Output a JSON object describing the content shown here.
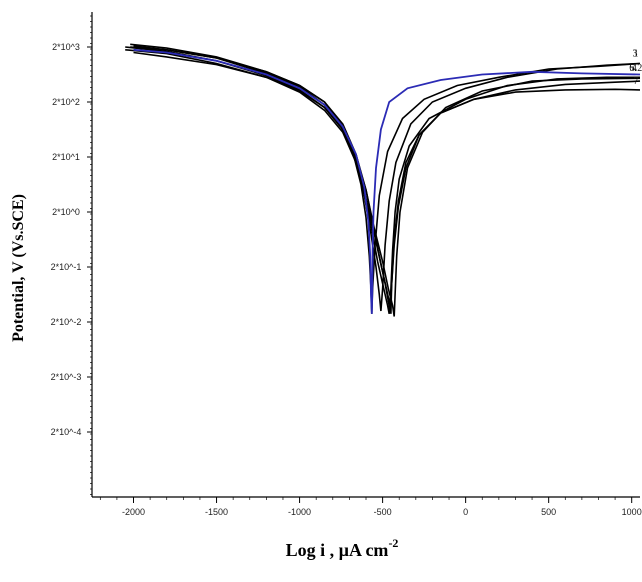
{
  "chart_data": {
    "type": "line",
    "title": "",
    "xlabel": "Log i , µA cm",
    "xlabel_sup": "-2",
    "ylabel": "Potential, V (Vs.SCE)",
    "xlim": [
      -2250,
      1050
    ],
    "x_ticks": [
      -2000,
      -1500,
      -1000,
      -500,
      0,
      500,
      1000
    ],
    "y_tick_labels": [
      "2*10^3",
      "2*10^2",
      "2*10^1",
      "2*10^0",
      "2*10^-1",
      "2*10^-2",
      "2*10^-3",
      "2*10^-4"
    ],
    "y_axis_note": "curve heights read in y-tick-label index units: 0 = 2*10^3 row, 7 = 2*10^-4 row",
    "grid": false,
    "legend": "curve labels at right end",
    "series": [
      {
        "name": "3",
        "color": "#000000",
        "points": [
          [
            -2020,
            -0.05
          ],
          [
            -1800,
            0.02
          ],
          [
            -1500,
            0.18
          ],
          [
            -1200,
            0.45
          ],
          [
            -1000,
            0.7
          ],
          [
            -850,
            1.0
          ],
          [
            -750,
            1.4
          ],
          [
            -680,
            1.9
          ],
          [
            -630,
            2.5
          ],
          [
            -600,
            3.1
          ],
          [
            -580,
            3.8
          ],
          [
            -570,
            4.4
          ],
          [
            -565,
            4.85
          ],
          [
            -560,
            4.4
          ],
          [
            -545,
            3.6
          ],
          [
            -520,
            2.7
          ],
          [
            -470,
            1.9
          ],
          [
            -380,
            1.3
          ],
          [
            -250,
            0.95
          ],
          [
            -50,
            0.7
          ],
          [
            200,
            0.55
          ],
          [
            500,
            0.4
          ],
          [
            800,
            0.35
          ],
          [
            1050,
            0.3
          ]
        ]
      },
      {
        "name": "1",
        "color": "#000000",
        "points": [
          [
            -2000,
            -0.02
          ],
          [
            -1800,
            0.05
          ],
          [
            -1500,
            0.2
          ],
          [
            -1200,
            0.48
          ],
          [
            -1000,
            0.72
          ],
          [
            -850,
            1.05
          ],
          [
            -750,
            1.45
          ],
          [
            -670,
            2.0
          ],
          [
            -610,
            2.7
          ],
          [
            -570,
            3.4
          ],
          [
            -540,
            4.0
          ],
          [
            -520,
            4.5
          ],
          [
            -510,
            4.8
          ],
          [
            -500,
            4.4
          ],
          [
            -485,
            3.6
          ],
          [
            -460,
            2.8
          ],
          [
            -420,
            2.1
          ],
          [
            -330,
            1.4
          ],
          [
            -200,
            1.0
          ],
          [
            0,
            0.75
          ],
          [
            250,
            0.55
          ],
          [
            550,
            0.4
          ],
          [
            850,
            0.33
          ],
          [
            1050,
            0.3
          ]
        ]
      },
      {
        "name": "6",
        "color": "#000000",
        "points": [
          [
            -2050,
            0.05
          ],
          [
            -1800,
            0.12
          ],
          [
            -1500,
            0.3
          ],
          [
            -1200,
            0.55
          ],
          [
            -1000,
            0.82
          ],
          [
            -850,
            1.15
          ],
          [
            -740,
            1.55
          ],
          [
            -660,
            2.1
          ],
          [
            -600,
            2.8
          ],
          [
            -560,
            3.4
          ],
          [
            -530,
            3.9
          ],
          [
            -500,
            4.3
          ],
          [
            -470,
            4.7
          ],
          [
            -460,
            4.85
          ],
          [
            -450,
            4.4
          ],
          [
            -440,
            3.7
          ],
          [
            -425,
            3.0
          ],
          [
            -400,
            2.4
          ],
          [
            -340,
            1.8
          ],
          [
            -220,
            1.3
          ],
          [
            0,
            0.95
          ],
          [
            250,
            0.7
          ],
          [
            550,
            0.58
          ],
          [
            850,
            0.55
          ],
          [
            1050,
            0.55
          ]
        ]
      },
      {
        "name": "5.2",
        "color": "#000000",
        "points": [
          [
            -2050,
            0.0
          ],
          [
            -1800,
            0.08
          ],
          [
            -1500,
            0.25
          ],
          [
            -1200,
            0.52
          ],
          [
            -1000,
            0.78
          ],
          [
            -850,
            1.1
          ],
          [
            -740,
            1.5
          ],
          [
            -660,
            2.05
          ],
          [
            -600,
            2.75
          ],
          [
            -550,
            3.4
          ],
          [
            -510,
            3.95
          ],
          [
            -480,
            4.35
          ],
          [
            -455,
            4.7
          ],
          [
            -450,
            4.85
          ],
          [
            -445,
            4.3
          ],
          [
            -430,
            3.5
          ],
          [
            -405,
            2.8
          ],
          [
            -360,
            2.1
          ],
          [
            -280,
            1.6
          ],
          [
            -150,
            1.2
          ],
          [
            50,
            0.95
          ],
          [
            300,
            0.78
          ],
          [
            600,
            0.68
          ],
          [
            900,
            0.64
          ],
          [
            1050,
            0.62
          ]
        ]
      },
      {
        "name": "4",
        "color": "#000000",
        "points": [
          [
            -2020,
            0.0
          ],
          [
            -1800,
            0.05
          ],
          [
            -1500,
            0.2
          ],
          [
            -1200,
            0.45
          ],
          [
            -1000,
            0.7
          ],
          [
            -850,
            1.0
          ],
          [
            -740,
            1.4
          ],
          [
            -660,
            1.95
          ],
          [
            -600,
            2.6
          ],
          [
            -550,
            3.3
          ],
          [
            -500,
            3.9
          ],
          [
            -465,
            4.4
          ],
          [
            -440,
            4.7
          ],
          [
            -430,
            4.9
          ],
          [
            -425,
            4.5
          ],
          [
            -415,
            3.8
          ],
          [
            -395,
            3.0
          ],
          [
            -350,
            2.2
          ],
          [
            -260,
            1.55
          ],
          [
            -120,
            1.1
          ],
          [
            100,
            0.8
          ],
          [
            400,
            0.62
          ],
          [
            700,
            0.58
          ],
          [
            1050,
            0.57
          ]
        ]
      },
      {
        "name": "7",
        "color": "#000000",
        "points": [
          [
            -2000,
            0.1
          ],
          [
            -1800,
            0.18
          ],
          [
            -1500,
            0.32
          ],
          [
            -1200,
            0.55
          ],
          [
            -1000,
            0.8
          ],
          [
            -850,
            1.1
          ],
          [
            -740,
            1.5
          ],
          [
            -660,
            2.0
          ],
          [
            -600,
            2.6
          ],
          [
            -560,
            3.2
          ],
          [
            -520,
            3.8
          ],
          [
            -485,
            4.3
          ],
          [
            -455,
            4.8
          ],
          [
            -445,
            4.3
          ],
          [
            -430,
            3.6
          ],
          [
            -405,
            2.9
          ],
          [
            -360,
            2.2
          ],
          [
            -280,
            1.6
          ],
          [
            -150,
            1.2
          ],
          [
            50,
            0.95
          ],
          [
            300,
            0.82
          ],
          [
            600,
            0.78
          ],
          [
            900,
            0.77
          ],
          [
            1050,
            0.78
          ]
        ]
      },
      {
        "name": "2",
        "color": "#2b2bb5",
        "points": [
          [
            -2000,
            0.05
          ],
          [
            -1800,
            0.1
          ],
          [
            -1500,
            0.25
          ],
          [
            -1200,
            0.5
          ],
          [
            -1000,
            0.75
          ],
          [
            -850,
            1.05
          ],
          [
            -740,
            1.45
          ],
          [
            -660,
            1.95
          ],
          [
            -610,
            2.55
          ],
          [
            -585,
            3.2
          ],
          [
            -575,
            3.8
          ],
          [
            -570,
            4.5
          ],
          [
            -565,
            4.85
          ],
          [
            -562,
            4.4
          ],
          [
            -560,
            3.7
          ],
          [
            -555,
            3.0
          ],
          [
            -540,
            2.2
          ],
          [
            -510,
            1.5
          ],
          [
            -460,
            1.0
          ],
          [
            -350,
            0.75
          ],
          [
            -150,
            0.6
          ],
          [
            100,
            0.5
          ],
          [
            400,
            0.45
          ],
          [
            700,
            0.48
          ],
          [
            1050,
            0.5
          ]
        ]
      }
    ],
    "curve_labels": [
      {
        "text": "3",
        "x": 1020,
        "y": 0.12
      },
      {
        "text": "1",
        "x": 1060,
        "y": 0.12
      },
      {
        "text": "6",
        "x": 1000,
        "y": 0.38
      },
      {
        "text": "4",
        "x": 1015,
        "y": 0.38
      },
      {
        "text": "5.2",
        "x": 1040,
        "y": 0.38
      },
      {
        "text": "7",
        "x": 1030,
        "y": 0.62
      }
    ]
  }
}
